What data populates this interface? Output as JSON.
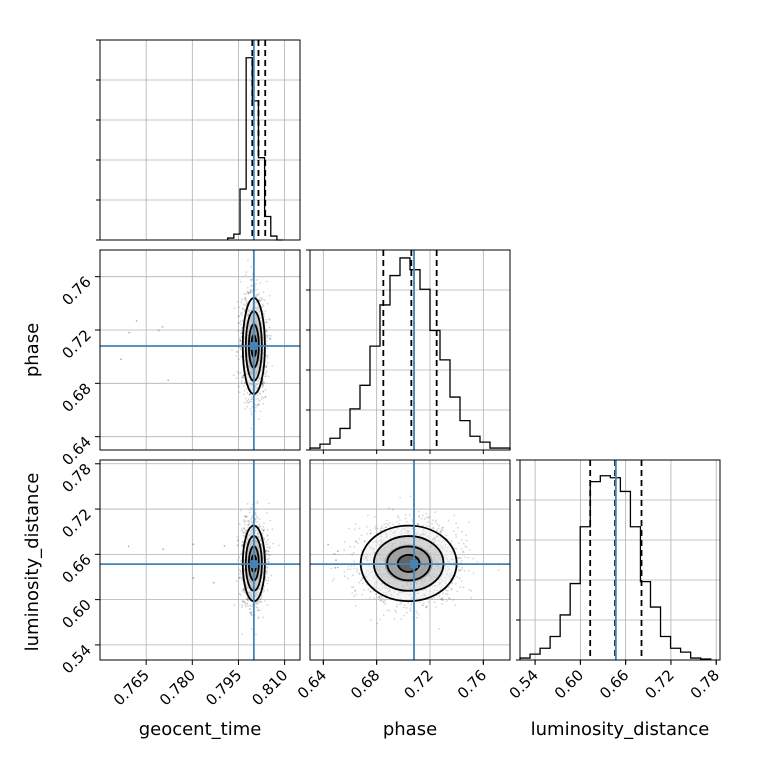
{
  "chart_data": {
    "type": "corner",
    "parameters": [
      {
        "name": "geocent_time",
        "label": "geocent_time",
        "range": [
          0.75,
          0.815
        ],
        "ticks": [
          0.765,
          0.78,
          0.795,
          0.81
        ],
        "tick_labels": [
          "0.765",
          "0.780",
          "0.795",
          "0.810"
        ],
        "truth": 0.8,
        "quantiles": [
          0.7995,
          0.8015,
          0.8037
        ]
      },
      {
        "name": "phase",
        "label": "phase",
        "range": [
          0.63,
          0.78
        ],
        "ticks": [
          0.64,
          0.68,
          0.72,
          0.76
        ],
        "tick_labels": [
          "0.64",
          "0.68",
          "0.72",
          "0.76"
        ],
        "truth": 0.708,
        "quantiles": [
          0.685,
          0.706,
          0.725
        ]
      },
      {
        "name": "luminosity_distance",
        "label": "luminosity_distance",
        "range": [
          0.52,
          0.785
        ],
        "ticks": [
          0.54,
          0.6,
          0.66,
          0.72,
          0.78
        ],
        "tick_labels": [
          "0.54",
          "0.60",
          "0.66",
          "0.72",
          "0.78"
        ],
        "truth": 0.647,
        "quantiles": [
          0.613,
          0.646,
          0.681
        ]
      }
    ],
    "histograms": [
      {
        "param": "geocent_time",
        "edges": [
          0.7915,
          0.7935,
          0.7955,
          0.7975,
          0.7995,
          0.8015,
          0.8035,
          0.8055,
          0.8075,
          0.8095
        ],
        "counts": [
          0.01,
          0.03,
          0.26,
          0.93,
          0.71,
          0.42,
          0.12,
          0.02,
          0.0
        ]
      },
      {
        "param": "phase",
        "edges": [
          0.63,
          0.6375,
          0.645,
          0.6525,
          0.66,
          0.6675,
          0.675,
          0.6825,
          0.69,
          0.6975,
          0.705,
          0.7125,
          0.72,
          0.7275,
          0.735,
          0.7425,
          0.75,
          0.7575,
          0.765,
          0.7725,
          0.78
        ],
        "counts": [
          0.01,
          0.03,
          0.06,
          0.11,
          0.21,
          0.33,
          0.53,
          0.74,
          0.89,
          0.98,
          0.92,
          0.82,
          0.61,
          0.46,
          0.27,
          0.15,
          0.07,
          0.04,
          0.01,
          0.01
        ]
      },
      {
        "param": "luminosity_distance",
        "edges": [
          0.52,
          0.5333,
          0.5466,
          0.5599,
          0.5732,
          0.5865,
          0.5998,
          0.6131,
          0.6264,
          0.6397,
          0.653,
          0.6663,
          0.6796,
          0.6929,
          0.7062,
          0.7195,
          0.7328,
          0.7461,
          0.7594,
          0.7727
        ],
        "counts": [
          0.01,
          0.03,
          0.06,
          0.12,
          0.23,
          0.39,
          0.68,
          0.91,
          0.94,
          0.93,
          0.86,
          0.68,
          0.4,
          0.27,
          0.12,
          0.06,
          0.04,
          0.01,
          0.005
        ]
      }
    ],
    "pairs": [
      {
        "x": "geocent_time",
        "y": "phase",
        "center": [
          0.8,
          0.708
        ],
        "spread": [
          0.0018,
          0.018
        ]
      },
      {
        "x": "geocent_time",
        "y": "luminosity_distance",
        "center": [
          0.8,
          0.648
        ],
        "spread": [
          0.0018,
          0.025
        ]
      },
      {
        "x": "phase",
        "y": "luminosity_distance",
        "center": [
          0.704,
          0.648
        ],
        "spread": [
          0.018,
          0.025
        ]
      }
    ],
    "colors": {
      "hist": "#000000",
      "quantile": "#000000",
      "truth": "#4682b4",
      "grid": "#b0b0b0",
      "scatter": "#000000"
    },
    "grid": true
  }
}
